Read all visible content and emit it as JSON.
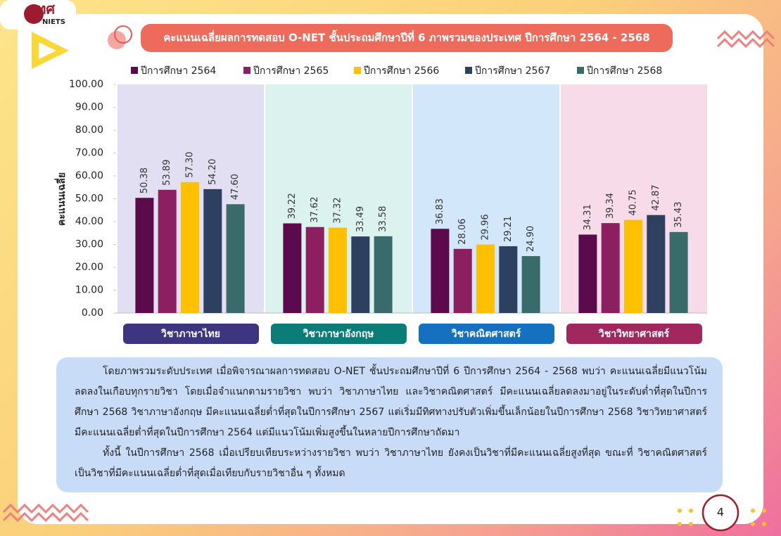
{
  "header": {
    "logo": "สทศ",
    "logo_sub": "NIETS"
  },
  "chart_data": {
    "type": "bar",
    "title": "คะแนนเฉลี่ยผลการทดสอบ O-NET ชั้นประถมศึกษาปีที่ 6 ภาพรวมของประเทศ ปีการศึกษา 2564 - 2568",
    "ylabel": "คะแนนเฉลี่ย",
    "categories": [
      "วิชาภาษาไทย",
      "วิชาภาษาอังกฤษ",
      "วิชาคณิตศาสตร์",
      "วิชาวิทยาศาสตร์"
    ],
    "category_colors": [
      "#3d3580",
      "#0b7d79",
      "#1670c0",
      "#a1285e"
    ],
    "panel_colors": [
      "#e3dff2",
      "#dbf2ee",
      "#d3e7fa",
      "#f7dbe9"
    ],
    "series": [
      {
        "name": "ปีการศึกษา 2564",
        "color": "#5b0b4c",
        "values": [
          50.38,
          39.22,
          36.83,
          34.31
        ],
        "value_labels": [
          "50.38",
          "39.22",
          "36.83",
          "34.31"
        ]
      },
      {
        "name": "ปีการศึกษา 2565",
        "color": "#8c1f5f",
        "values": [
          53.89,
          37.62,
          28.06,
          39.34
        ],
        "value_labels": [
          "53.89",
          "37.62",
          "28.06",
          "39.34"
        ]
      },
      {
        "name": "ปีการศึกษา 2566",
        "color": "#ffc000",
        "values": [
          57.3,
          37.32,
          29.96,
          40.75
        ],
        "value_labels": [
          "57.30",
          "37.32",
          "29.96",
          "40.75"
        ]
      },
      {
        "name": "ปีการศึกษา 2567",
        "color": "#2d405f",
        "values": [
          54.2,
          33.49,
          29.21,
          42.87
        ],
        "value_labels": [
          "54.20",
          "33.49",
          "29.21",
          "42.87"
        ]
      },
      {
        "name": "ปีการศึกษา 2568",
        "color": "#3a6b6b",
        "values": [
          47.6,
          33.58,
          24.9,
          35.43
        ],
        "value_labels": [
          "47.60",
          "33.58",
          "24.90",
          "35.43"
        ]
      }
    ],
    "ylim": [
      0,
      100
    ],
    "yticks": [
      {
        "value": 0,
        "label": "0.00"
      },
      {
        "value": 10,
        "label": "10.00"
      },
      {
        "value": 20,
        "label": "20.00"
      },
      {
        "value": 30,
        "label": "30.00"
      },
      {
        "value": 40,
        "label": "40.00"
      },
      {
        "value": 50,
        "label": "50.00"
      },
      {
        "value": 60,
        "label": "60.00"
      },
      {
        "value": 70,
        "label": "70.00"
      },
      {
        "value": 80,
        "label": "80.00"
      },
      {
        "value": 90,
        "label": "90.00"
      },
      {
        "value": 100,
        "label": "100.00"
      }
    ],
    "grid": false,
    "legend": "top"
  },
  "summary": [
    "โดยภาพรวมระดับประเทศ เมื่อพิจารณาผลการทดสอบ O-NET ชั้นประถมศึกษาปีที่ 6 ปีการศึกษา 2564 - 2568 พบว่า คะแนนเฉลี่ยมีแนวโน้มลดลงในเกือบทุกรายวิชา โดยเมื่อจำแนกตามรายวิชา พบว่า วิชาภาษาไทย และวิชาคณิตศาสตร์ มีคะแนนเฉลี่ยลดลงมาอยู่ในระดับต่ำที่สุดในปีการศึกษา 2568 วิชาภาษาอังกฤษ มีคะแนนเฉลี่ยต่ำที่สุดในปีการศึกษา 2567 แต่เริ่มมีทิศทางปรับตัวเพิ่มขึ้นเล็กน้อยในปีการศึกษา 2568 วิชาวิทยาศาสตร์ มีคะแนนเฉลี่ยต่ำที่สุดในปีการศึกษา 2564 แต่มีแนวโน้มเพิ่มสูงขึ้นในหลายปีการศึกษาถัดมา",
    "ทั้งนี้ ในปีการศึกษา 2568 เมื่อเปรียบเทียบระหว่างรายวิชา พบว่า วิชาภาษาไทย ยังคงเป็นวิชาที่มีคะแนนเฉลี่ยสูงที่สุด ขณะที่ วิชาคณิตศาสตร์ เป็นวิชาที่มีคะแนนเฉลี่ยต่ำที่สุดเมื่อเทียบกับรายวิชาอื่น ๆ ทั้งหมด"
  ],
  "page_number": "4"
}
